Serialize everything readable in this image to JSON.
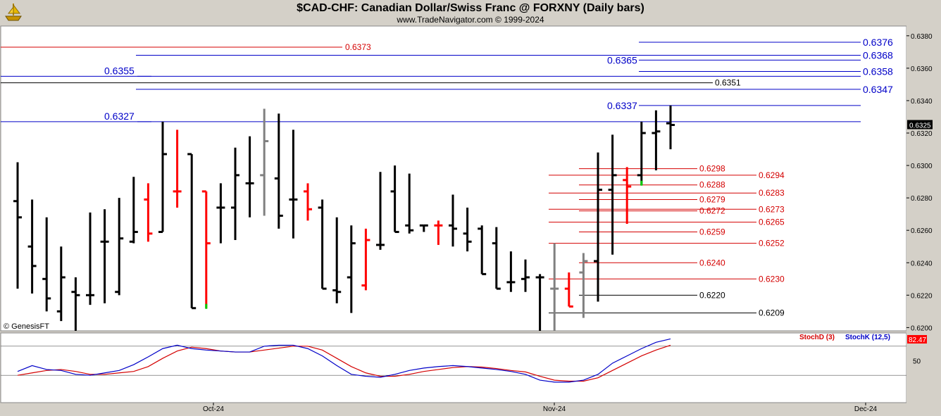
{
  "header": {
    "title": "$CAD-CHF:  Canadian Dollar/Swiss Franc @ FORXNY  (Daily bars)",
    "subtitle": "www.TradeNavigator.com © 1999-2024",
    "logo_icon": "ship-icon"
  },
  "copyright": "© GenesisFT",
  "colors": {
    "background": "#ffffff",
    "frame": "#d4d0c8",
    "bar_black": "#000000",
    "bar_red": "#ff0000",
    "bar_gray": "#808080",
    "bar_green": "#00cc00",
    "blue_level": "#0000c8",
    "red_level": "#d40000",
    "stoch_d": "#d40000",
    "stoch_k": "#0000c8",
    "last_price_bg": "#000000",
    "stoch_last_bg": "#ff0000"
  },
  "chart_data": {
    "type": "ohlc",
    "price_axis": {
      "ylim": [
        0.6198,
        0.6386
      ],
      "ticks": [
        "0.6380",
        "0.6360",
        "0.6340",
        "0.6320",
        "0.6300",
        "0.6280",
        "0.6260",
        "0.6240",
        "0.6220",
        "0.6200"
      ],
      "last_price": "0.6325"
    },
    "x_axis": {
      "labels": [
        "Oct-24",
        "Nov-24",
        "Dec-24"
      ]
    },
    "bars": [
      {
        "o": 0.6278,
        "h": 0.6302,
        "l": 0.6224,
        "c": 0.6268,
        "color": "black"
      },
      {
        "o": 0.625,
        "h": 0.6279,
        "l": 0.6221,
        "c": 0.6238,
        "color": "black"
      },
      {
        "o": 0.623,
        "h": 0.6268,
        "l": 0.621,
        "c": 0.6218,
        "color": "black"
      },
      {
        "o": 0.621,
        "h": 0.625,
        "l": 0.6204,
        "c": 0.6231,
        "color": "black"
      },
      {
        "o": 0.6222,
        "h": 0.6231,
        "l": 0.6198,
        "c": 0.622,
        "color": "black"
      },
      {
        "o": 0.622,
        "h": 0.6271,
        "l": 0.6214,
        "c": 0.622,
        "color": "black"
      },
      {
        "o": 0.6253,
        "h": 0.6273,
        "l": 0.6215,
        "c": 0.6253,
        "color": "black"
      },
      {
        "o": 0.6222,
        "h": 0.628,
        "l": 0.622,
        "c": 0.6255,
        "color": "black"
      },
      {
        "o": 0.6253,
        "h": 0.6293,
        "l": 0.6252,
        "c": 0.6259,
        "color": "black"
      },
      {
        "o": 0.6279,
        "h": 0.6289,
        "l": 0.6253,
        "c": 0.6258,
        "color": "red"
      },
      {
        "o": 0.6259,
        "h": 0.6327,
        "l": 0.6259,
        "c": 0.6307,
        "color": "black"
      },
      {
        "o": 0.6284,
        "h": 0.6322,
        "l": 0.6274,
        "c": 0.6284,
        "color": "red"
      },
      {
        "o": 0.6307,
        "h": 0.6307,
        "l": 0.6212,
        "c": 0.6212,
        "color": "black"
      },
      {
        "o": 0.6284,
        "h": 0.6284,
        "l": 0.6212,
        "c": 0.6252,
        "color": "red",
        "low_tick": "green"
      },
      {
        "o": 0.6274,
        "h": 0.6289,
        "l": 0.6252,
        "c": 0.6274,
        "color": "black"
      },
      {
        "o": 0.6274,
        "h": 0.6311,
        "l": 0.6254,
        "c": 0.6294,
        "color": "black"
      },
      {
        "o": 0.6289,
        "h": 0.6318,
        "l": 0.6268,
        "c": 0.6289,
        "color": "black"
      },
      {
        "o": 0.6294,
        "h": 0.6335,
        "l": 0.6269,
        "c": 0.6315,
        "color": "gray"
      },
      {
        "o": 0.6292,
        "h": 0.6332,
        "l": 0.6261,
        "c": 0.6269,
        "color": "black"
      },
      {
        "o": 0.6279,
        "h": 0.6322,
        "l": 0.6255,
        "c": 0.6279,
        "color": "black"
      },
      {
        "o": 0.6284,
        "h": 0.6289,
        "l": 0.6266,
        "c": 0.6273,
        "color": "red"
      },
      {
        "o": 0.6274,
        "h": 0.6279,
        "l": 0.6224,
        "c": 0.6224,
        "color": "black"
      },
      {
        "o": 0.6223,
        "h": 0.6268,
        "l": 0.6215,
        "c": 0.6222,
        "color": "black"
      },
      {
        "o": 0.6231,
        "h": 0.6263,
        "l": 0.6209,
        "c": 0.6252,
        "color": "black"
      },
      {
        "o": 0.6226,
        "h": 0.6261,
        "l": 0.6223,
        "c": 0.6254,
        "color": "red"
      },
      {
        "o": 0.6251,
        "h": 0.6296,
        "l": 0.6248,
        "c": 0.6251,
        "color": "black"
      },
      {
        "o": 0.6284,
        "h": 0.63,
        "l": 0.6259,
        "c": 0.6259,
        "color": "black"
      },
      {
        "o": 0.6263,
        "h": 0.6295,
        "l": 0.6258,
        "c": 0.626,
        "color": "black"
      },
      {
        "o": 0.6263,
        "h": 0.6263,
        "l": 0.6259,
        "c": 0.6263,
        "color": "black"
      },
      {
        "o": 0.6263,
        "h": 0.6266,
        "l": 0.6251,
        "c": 0.6263,
        "color": "red"
      },
      {
        "o": 0.6263,
        "h": 0.6282,
        "l": 0.625,
        "c": 0.6261,
        "color": "black"
      },
      {
        "o": 0.6258,
        "h": 0.6274,
        "l": 0.6247,
        "c": 0.6253,
        "color": "black"
      },
      {
        "o": 0.6261,
        "h": 0.6263,
        "l": 0.6233,
        "c": 0.6233,
        "color": "black"
      },
      {
        "o": 0.6252,
        "h": 0.6262,
        "l": 0.6224,
        "c": 0.6224,
        "color": "black"
      },
      {
        "o": 0.6228,
        "h": 0.6247,
        "l": 0.6222,
        "c": 0.6228,
        "color": "black"
      },
      {
        "o": 0.623,
        "h": 0.6242,
        "l": 0.6222,
        "c": 0.6231,
        "color": "black"
      },
      {
        "o": 0.6231,
        "h": 0.6233,
        "l": 0.6198,
        "c": 0.6231,
        "color": "black"
      },
      {
        "o": 0.6224,
        "h": 0.6252,
        "l": 0.6198,
        "c": 0.6224,
        "color": "gray"
      },
      {
        "o": 0.6224,
        "h": 0.6234,
        "l": 0.6213,
        "c": 0.6213,
        "color": "red"
      },
      {
        "o": 0.6234,
        "h": 0.6246,
        "l": 0.6206,
        "c": 0.6241,
        "color": "gray"
      },
      {
        "o": 0.6241,
        "h": 0.6308,
        "l": 0.6216,
        "c": 0.6285,
        "color": "black"
      },
      {
        "o": 0.6285,
        "h": 0.6319,
        "l": 0.6245,
        "c": 0.6294,
        "color": "black"
      },
      {
        "o": 0.6291,
        "h": 0.6299,
        "l": 0.6264,
        "c": 0.6287,
        "color": "red"
      },
      {
        "o": 0.6294,
        "h": 0.6327,
        "l": 0.6288,
        "c": 0.632,
        "color": "black",
        "low_tick": "green"
      },
      {
        "o": 0.632,
        "h": 0.6334,
        "l": 0.6297,
        "c": 0.6321,
        "color": "black"
      },
      {
        "o": 0.6326,
        "h": 0.6337,
        "l": 0.631,
        "c": 0.6325,
        "color": "black"
      }
    ],
    "levels": [
      {
        "value": 0.6376,
        "label": "0.6376",
        "color": "blue",
        "span": "right",
        "label_at": "right"
      },
      {
        "value": 0.6368,
        "label": "0.6368",
        "color": "blue",
        "span": "wide",
        "label_at": "right"
      },
      {
        "value": 0.6365,
        "label": "0.6365",
        "color": "blue",
        "span": "right",
        "label_at": "mid"
      },
      {
        "value": 0.6358,
        "label": "0.6358",
        "color": "blue",
        "span": "right",
        "label_at": "right"
      },
      {
        "value": 0.6355,
        "label": "0.6355",
        "color": "blue",
        "span": "full",
        "label_at": "left"
      },
      {
        "value": 0.6351,
        "label": "0.6351",
        "color": "black",
        "span": "full",
        "label_at": "mid2"
      },
      {
        "value": 0.6347,
        "label": "0.6347",
        "color": "blue",
        "span": "wide",
        "label_at": "right"
      },
      {
        "value": 0.6337,
        "label": "0.6337",
        "color": "blue",
        "span": "right",
        "label_at": "mid"
      },
      {
        "value": 0.6327,
        "label": "0.6327",
        "color": "blue",
        "span": "full",
        "label_at": "left"
      },
      {
        "value": 0.6373,
        "label": "0.6373",
        "color": "red",
        "span": "full",
        "label_at": "mid0"
      },
      {
        "value": 0.6298,
        "label": "0.6298",
        "color": "red",
        "span": "short",
        "label_at": "a"
      },
      {
        "value": 0.6294,
        "label": "0.6294",
        "color": "red",
        "span": "short2",
        "label_at": "b"
      },
      {
        "value": 0.6288,
        "label": "0.6288",
        "color": "red",
        "span": "short",
        "label_at": "a"
      },
      {
        "value": 0.6283,
        "label": "0.6283",
        "color": "red",
        "span": "short2",
        "label_at": "b"
      },
      {
        "value": 0.6279,
        "label": "0.6279",
        "color": "red",
        "span": "short",
        "label_at": "a"
      },
      {
        "value": 0.6273,
        "label": "0.6273",
        "color": "red",
        "span": "short2",
        "label_at": "b"
      },
      {
        "value": 0.6272,
        "label": "0.6272",
        "color": "red",
        "span": "short",
        "label_at": "a"
      },
      {
        "value": 0.6265,
        "label": "0.6265",
        "color": "red",
        "span": "short2",
        "label_at": "b"
      },
      {
        "value": 0.6259,
        "label": "0.6259",
        "color": "red",
        "span": "short",
        "label_at": "a"
      },
      {
        "value": 0.6252,
        "label": "0.6252",
        "color": "red",
        "span": "short2",
        "label_at": "b"
      },
      {
        "value": 0.624,
        "label": "0.6240",
        "color": "red",
        "span": "short",
        "label_at": "a"
      },
      {
        "value": 0.623,
        "label": "0.6230",
        "color": "red",
        "span": "short2",
        "label_at": "b"
      },
      {
        "value": 0.622,
        "label": "0.6220",
        "color": "black",
        "span": "short",
        "label_at": "a"
      },
      {
        "value": 0.6209,
        "label": "0.6209",
        "color": "black",
        "span": "short2",
        "label_at": "b"
      }
    ],
    "stochastic": {
      "ylim": [
        0,
        100
      ],
      "tick_label": "50",
      "last_d": "82.47",
      "legend": [
        "StochD (3)",
        "StochK (12,5)"
      ],
      "k_values": [
        28,
        40,
        32,
        30,
        22,
        20,
        25,
        30,
        42,
        58,
        75,
        82,
        75,
        72,
        70,
        68,
        68,
        80,
        82,
        82,
        75,
        60,
        40,
        22,
        18,
        16,
        22,
        30,
        35,
        38,
        40,
        38,
        35,
        32,
        28,
        22,
        10,
        6,
        6,
        10,
        22,
        45,
        60,
        75,
        88,
        95
      ],
      "d_values": [
        20,
        25,
        30,
        32,
        28,
        22,
        22,
        25,
        28,
        38,
        55,
        70,
        78,
        75,
        70,
        68,
        68,
        72,
        76,
        80,
        80,
        72,
        55,
        38,
        25,
        18,
        18,
        22,
        28,
        32,
        36,
        38,
        37,
        34,
        30,
        27,
        18,
        10,
        8,
        8,
        15,
        30,
        45,
        60,
        72,
        82
      ]
    }
  }
}
